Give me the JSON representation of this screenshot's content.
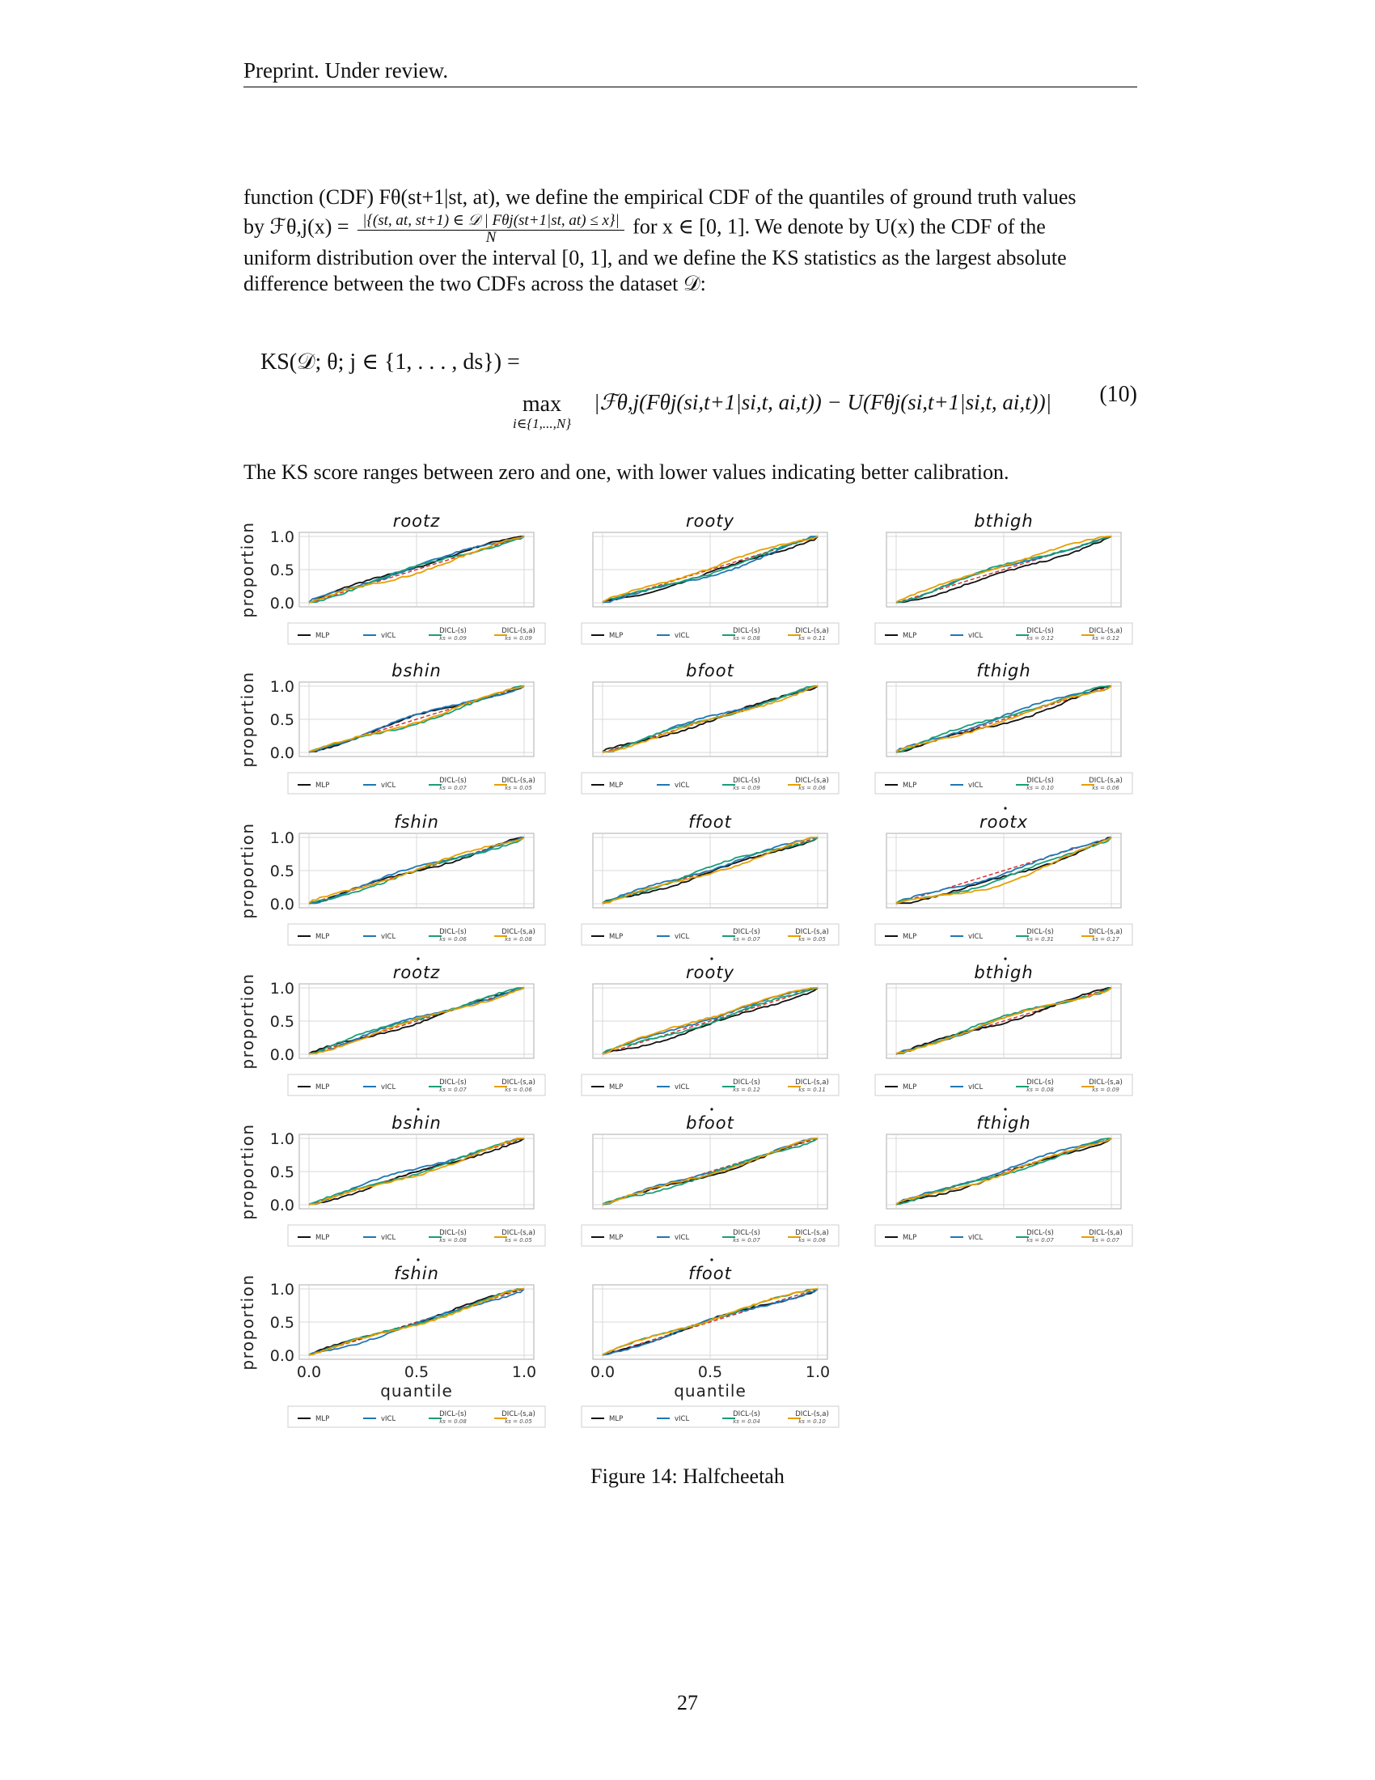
{
  "header": "Preprint. Under review.",
  "para1": {
    "line1": "function (CDF) Fθ(st+1|st, at), we define the empirical CDF of the quantiles of ground truth values",
    "line2_pre": "by ℱθ,j(x) =",
    "frac_num": "|{(st, at, st+1) ∈ 𝒟 | Fθj(st+1|st, at) ≤ x}|",
    "frac_den": "N",
    "line2_post": "for x ∈ [0, 1]. We denote by U(x) the CDF of the",
    "line3": "uniform distribution over the interval [0, 1], and we define the KS statistics as the largest absolute",
    "line4": "difference between the two CDFs across the dataset 𝒟:"
  },
  "equation": {
    "lhs": "KS(𝒟; θ; j ∈ {1, . . . , ds}) =",
    "max_label": "max",
    "max_sub": "i∈{1,...,N}",
    "rhs": "|ℱθ,j(Fθj(si,t+1|si,t, ai,t)) − U(Fθj(si,t+1|si,t, ai,t))|",
    "number": "(10)"
  },
  "para2": "The KS score ranges between zero and one, with lower values indicating better calibration.",
  "caption": "Figure 14: Halfcheetah",
  "page_number": "27",
  "legend_labels": {
    "mlp": "MLP",
    "vicl": "vICL",
    "dicl_s": "DICL-(s)",
    "dicl_sa": "DICL-(s,a)"
  },
  "axis": {
    "ylabel": "proportion",
    "xlabel": "quantile",
    "yticks": [
      "0.0",
      "0.5",
      "1.0"
    ],
    "xticks": [
      "0.0",
      "0.5",
      "1.0"
    ]
  },
  "colors": {
    "mlp": "#111111",
    "vicl": "#1f77b4",
    "dicl_s": "#1a9e77",
    "dicl_sa": "#e69f00",
    "diagonal": "#d62728",
    "grid": "#d9d9d9",
    "frame": "#bbbbbb"
  },
  "chart_data": [
    {
      "type": "line",
      "title": "rootz",
      "ks": [
        "0.09",
        "0.09"
      ],
      "dot": false
    },
    {
      "type": "line",
      "title": "rooty",
      "ks": [
        "0.08",
        "0.11"
      ],
      "dot": false
    },
    {
      "type": "line",
      "title": "bthigh",
      "ks": [
        "0.12",
        "0.12"
      ],
      "dot": false
    },
    {
      "type": "line",
      "title": "bshin",
      "ks": [
        "0.07",
        "0.05"
      ],
      "dot": false
    },
    {
      "type": "line",
      "title": "bfoot",
      "ks": [
        "0.09",
        "0.06"
      ],
      "dot": false
    },
    {
      "type": "line",
      "title": "fthigh",
      "ks": [
        "0.10",
        "0.06"
      ],
      "dot": false
    },
    {
      "type": "line",
      "title": "fshin",
      "ks": [
        "0.06",
        "0.08"
      ],
      "dot": false
    },
    {
      "type": "line",
      "title": "ffoot",
      "ks": [
        "0.07",
        "0.05"
      ],
      "dot": false
    },
    {
      "type": "line",
      "title": "rootx",
      "ks": [
        "0.31",
        "0.17"
      ],
      "dot": true
    },
    {
      "type": "line",
      "title": "rootz",
      "ks": [
        "0.07",
        "0.06"
      ],
      "dot": true
    },
    {
      "type": "line",
      "title": "rooty",
      "ks": [
        "0.12",
        "0.11"
      ],
      "dot": true
    },
    {
      "type": "line",
      "title": "bthigh",
      "ks": [
        "0.08",
        "0.09"
      ],
      "dot": true
    },
    {
      "type": "line",
      "title": "bshin",
      "ks": [
        "0.08",
        "0.05"
      ],
      "dot": true
    },
    {
      "type": "line",
      "title": "bfoot",
      "ks": [
        "0.07",
        "0.06"
      ],
      "dot": true
    },
    {
      "type": "line",
      "title": "fthigh",
      "ks": [
        "0.07",
        "0.07"
      ],
      "dot": true
    },
    {
      "type": "line",
      "title": "fshin",
      "ks": [
        "0.08",
        "0.05"
      ],
      "dot": true
    },
    {
      "type": "line",
      "title": "ffoot",
      "ks": [
        "0.04",
        "0.10"
      ],
      "dot": true
    }
  ]
}
